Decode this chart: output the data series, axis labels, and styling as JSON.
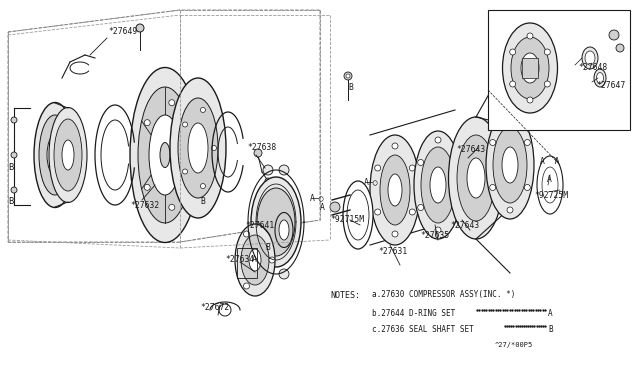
{
  "bg_color": "#ffffff",
  "line_color": "#1a1a1a",
  "gray1": "#e8e8e8",
  "gray2": "#d0d0d0",
  "gray3": "#b8b8b8",
  "note_a": "a.27630 COMPRESSOR ASSY(INC. *)",
  "note_b": "b.27644 D-RING SET",
  "note_c": "c.27636 SEAL SHAFT SET",
  "part_code": "^27/*00P5"
}
